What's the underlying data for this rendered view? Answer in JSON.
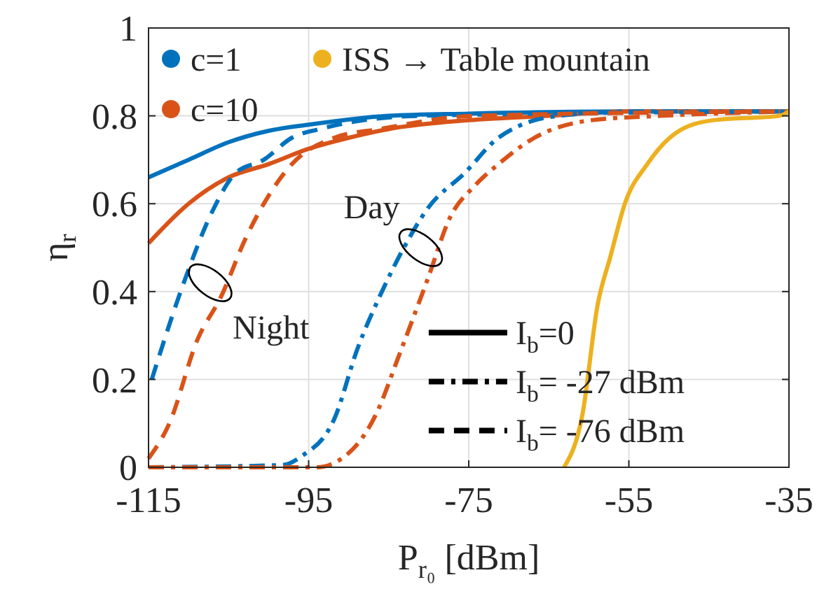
{
  "chart_data": {
    "type": "line",
    "xlabel": "P$_{r₀}$ [dBm]",
    "ylabel": "η$_{r}$",
    "xlim": [
      -115,
      -35
    ],
    "xticks": [
      -115,
      -95,
      -75,
      -55,
      -35
    ],
    "ylim": [
      0,
      1
    ],
    "yticks": [
      0,
      0.2,
      0.4,
      0.6,
      0.8,
      1
    ],
    "grid": true,
    "legend": "top left",
    "series": [
      {
        "name": "c=1",
        "color": "#0072bd",
        "line_style": "solid",
        "x": [
          -115,
          -110,
          -105,
          -100,
          -95,
          -85,
          -75,
          -55,
          -35
        ],
        "values": [
          0.66,
          0.7,
          0.74,
          0.766,
          0.78,
          0.8,
          0.805,
          0.81,
          0.81
        ]
      },
      {
        "name": "c=10",
        "color": "#d95319",
        "line_style": "solid",
        "x": [
          -115,
          -110,
          -105,
          -100,
          -95,
          -90,
          -85,
          -75,
          -65,
          -55,
          -35
        ],
        "values": [
          0.51,
          0.6,
          0.66,
          0.69,
          0.725,
          0.75,
          0.77,
          0.79,
          0.8,
          0.81,
          0.81
        ]
      },
      {
        "color": "#0072bd",
        "line_style": "dashdot",
        "x": [
          -115,
          -98.3,
          -95.9,
          -91.8,
          -88.9,
          -86.1,
          -83.1,
          -80.1,
          -75.5,
          -71.3,
          -63.8,
          -53.8,
          -35
        ],
        "values": [
          0,
          0.005,
          0.025,
          0.11,
          0.27,
          0.39,
          0.5,
          0.59,
          0.67,
          0.75,
          0.8,
          0.81,
          0.81
        ]
      },
      {
        "color": "#d95319",
        "line_style": "dashdot",
        "x": [
          -115,
          -94,
          -91.8,
          -86.6,
          -83.6,
          -80.1,
          -77.3,
          -74.3,
          -71.3,
          -66.8,
          -59.7,
          -51,
          -35
        ],
        "values": [
          0,
          0,
          0.01,
          0.12,
          0.26,
          0.43,
          0.57,
          0.64,
          0.69,
          0.75,
          0.79,
          0.8,
          0.81
        ]
      },
      {
        "color": "#0072bd",
        "line_style": "dashed",
        "x": [
          -114.6,
          -110.6,
          -107.1,
          -104.1,
          -100.6,
          -97.1,
          -93.6,
          -81.3,
          -35
        ],
        "values": [
          0.2,
          0.42,
          0.58,
          0.67,
          0.7,
          0.75,
          0.77,
          0.8,
          0.81
        ]
      },
      {
        "color": "#d95319",
        "line_style": "dashed",
        "x": [
          -115,
          -112.4,
          -108.9,
          -105.9,
          -102.9,
          -100.6,
          -97.1,
          -91.8,
          -86.1,
          -74.3,
          -35
        ],
        "values": [
          0.02,
          0.1,
          0.29,
          0.39,
          0.52,
          0.6,
          0.69,
          0.75,
          0.77,
          0.8,
          0.81
        ]
      },
      {
        "name": "ISS → Table mountain",
        "color": "#edb120",
        "line_style": "solid",
        "x": [
          -63.1,
          -60.8,
          -58.9,
          -57.3,
          -55.5,
          -52.7,
          -49.2,
          -44.5,
          -36.2,
          -35
        ],
        "values": [
          0,
          0.12,
          0.37,
          0.48,
          0.6,
          0.69,
          0.76,
          0.79,
          0.8,
          0.81
        ]
      }
    ],
    "annotations": [
      "I$_{b}$=0",
      "I$_{b}$= -27 dBm",
      "I$_{b}$= -76 dBm",
      {
        "text": "Day",
        "x": -81,
        "y": 0.5
      },
      {
        "text": "Night",
        "x": -107.3,
        "y": 0.42
      }
    ]
  }
}
